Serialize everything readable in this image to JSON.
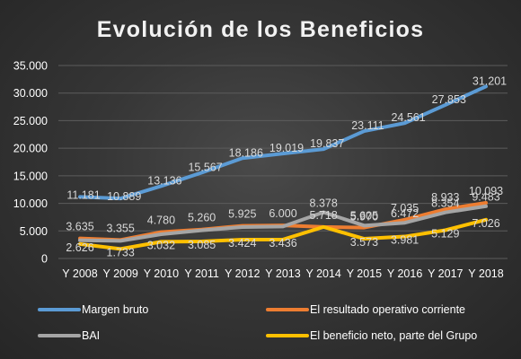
{
  "chart_data": {
    "type": "line",
    "title": "Evolución de los Beneficios",
    "categories": [
      "Y 2008",
      "Y 2009",
      "Y 2010",
      "Y 2011",
      "Y 2012",
      "Y 2013",
      "Y 2014",
      "Y 2015",
      "Y 2016",
      "Y 2017",
      "Y 2018"
    ],
    "ylim": [
      0,
      35000
    ],
    "yticks": [
      0,
      5000,
      10000,
      15000,
      20000,
      25000,
      30000,
      35000
    ],
    "ytick_labels": [
      "0",
      "5.000",
      "10.000",
      "15.000",
      "20.000",
      "25.000",
      "30.000",
      "35.000"
    ],
    "grid": true,
    "legend_position": "bottom",
    "series": [
      {
        "name": "Margen bruto",
        "color": "#5b9bd5",
        "values": [
          11181,
          10889,
          13136,
          15567,
          18186,
          19019,
          19837,
          23111,
          24561,
          27853,
          31201
        ],
        "labels": [
          "11.181",
          "10.889",
          "13.136",
          "15.567",
          "18.186",
          "19.019",
          "19.837",
          "23.111",
          "24.561",
          "27.853",
          "31.201"
        ]
      },
      {
        "name": "El resultado operativo corriente",
        "color": "#ed7d31",
        "values": [
          3635,
          3355,
          4780,
          5260,
          5925,
          6000,
          5718,
          5605,
          7035,
          8933,
          10093
        ],
        "labels": [
          "3.635",
          "3.355",
          "4.780",
          "5.260",
          "5.925",
          "6.000",
          "5.718",
          "5.605",
          "7.035",
          "8.933",
          "10.093"
        ]
      },
      {
        "name": "BAI",
        "color": "#a5a5a5",
        "values": [
          3300,
          3200,
          4400,
          5100,
          5700,
          5800,
          8378,
          5970,
          6472,
          8354,
          9483
        ],
        "labels": [
          "",
          "",
          "",
          "",
          "",
          "",
          "8.378",
          "5.970",
          "6.472",
          "8.354",
          "9.483"
        ]
      },
      {
        "name": "El beneficio neto, parte del Grupo",
        "color": "#ffc000",
        "values": [
          2626,
          1733,
          3032,
          3085,
          3424,
          3436,
          5718,
          3573,
          3981,
          5129,
          7026
        ],
        "labels": [
          "2.626",
          "1.733",
          "3.032",
          "3.085",
          "3.424",
          "3.436",
          "",
          "3.573",
          "3.981",
          "5.129",
          "7.026"
        ]
      }
    ]
  }
}
